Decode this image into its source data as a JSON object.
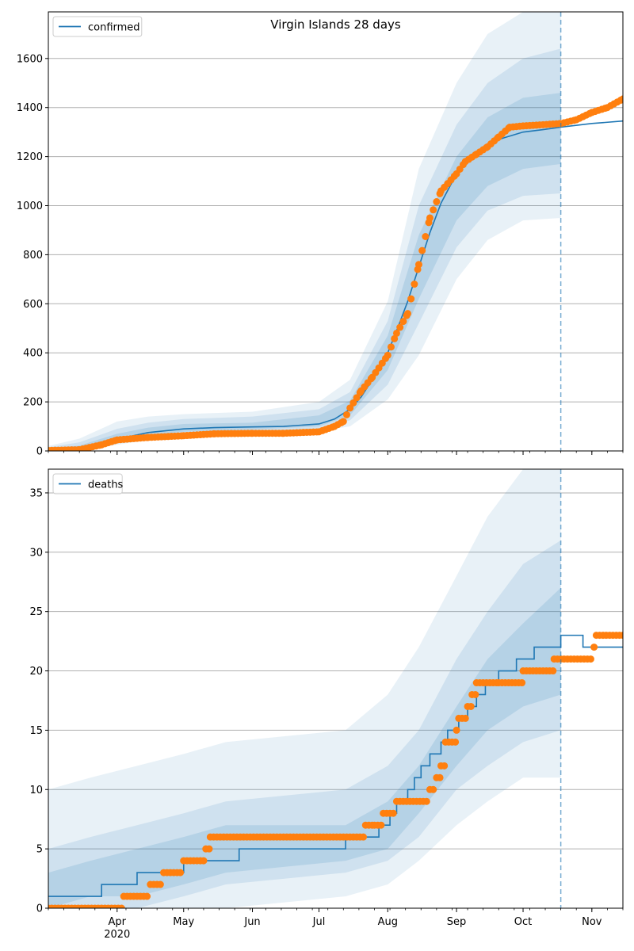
{
  "chart_data": [
    {
      "type": "line",
      "title": "Virgin Islands 28 days",
      "legend": {
        "entries": [
          "confirmed"
        ],
        "placement": "top-left"
      },
      "grid": "horizontal",
      "x_type": "date",
      "xlim": [
        "2020-03-01",
        "2020-11-15"
      ],
      "ylim": [
        0,
        1790
      ],
      "y_ticks": [
        0,
        200,
        400,
        600,
        800,
        1000,
        1200,
        1400,
        1600
      ],
      "x_tick_labels": [
        {
          "date": "2020-04-01",
          "label": "Apr",
          "sub": "2020"
        },
        {
          "date": "2020-05-01",
          "label": "May"
        },
        {
          "date": "2020-06-01",
          "label": "Jun"
        },
        {
          "date": "2020-07-01",
          "label": "Jul"
        },
        {
          "date": "2020-08-01",
          "label": "Aug"
        },
        {
          "date": "2020-09-01",
          "label": "Sep"
        },
        {
          "date": "2020-10-01",
          "label": "Oct"
        },
        {
          "date": "2020-11-01",
          "label": "Nov"
        }
      ],
      "forecast_start": "2020-10-18",
      "series": [
        {
          "name": "confirmed",
          "role": "model",
          "x": [
            "2020-03-01",
            "2020-03-15",
            "2020-03-25",
            "2020-04-01",
            "2020-04-15",
            "2020-05-01",
            "2020-05-15",
            "2020-06-01",
            "2020-06-15",
            "2020-07-01",
            "2020-07-08",
            "2020-07-15",
            "2020-07-20",
            "2020-07-25",
            "2020-08-01",
            "2020-08-05",
            "2020-08-10",
            "2020-08-15",
            "2020-08-20",
            "2020-08-25",
            "2020-09-01",
            "2020-09-10",
            "2020-09-20",
            "2020-10-01",
            "2020-10-10",
            "2020-10-18",
            "2020-11-01",
            "2020-11-15"
          ],
          "y": [
            5,
            12,
            30,
            48,
            75,
            90,
            95,
            98,
            100,
            110,
            130,
            170,
            220,
            290,
            400,
            490,
            610,
            750,
            890,
            1010,
            1130,
            1220,
            1270,
            1300,
            1310,
            1320,
            1335,
            1345
          ]
        },
        {
          "name": "",
          "role": "observed",
          "x": [
            "2020-03-01",
            "2020-03-15",
            "2020-03-25",
            "2020-04-01",
            "2020-04-15",
            "2020-05-01",
            "2020-05-15",
            "2020-06-01",
            "2020-06-15",
            "2020-07-01",
            "2020-07-08",
            "2020-07-12",
            "2020-07-15",
            "2020-07-20",
            "2020-07-25",
            "2020-08-01",
            "2020-08-05",
            "2020-08-10",
            "2020-08-15",
            "2020-08-20",
            "2020-08-25",
            "2020-09-01",
            "2020-09-05",
            "2020-09-10",
            "2020-09-15",
            "2020-09-20",
            "2020-09-25",
            "2020-10-01",
            "2020-10-10",
            "2020-10-18",
            "2020-10-25",
            "2020-11-01",
            "2020-11-08",
            "2020-11-15"
          ],
          "y": [
            2,
            5,
            25,
            45,
            55,
            62,
            70,
            72,
            72,
            78,
            100,
            120,
            175,
            245,
            300,
            390,
            480,
            560,
            760,
            950,
            1060,
            1130,
            1180,
            1210,
            1240,
            1280,
            1320,
            1325,
            1330,
            1335,
            1350,
            1380,
            1400,
            1435
          ]
        }
      ],
      "bands": [
        {
          "level": "outer",
          "x": [
            "2020-03-01",
            "2020-03-15",
            "2020-04-01",
            "2020-04-15",
            "2020-05-01",
            "2020-06-01",
            "2020-07-01",
            "2020-07-15",
            "2020-08-01",
            "2020-08-15",
            "2020-09-01",
            "2020-09-15",
            "2020-10-01",
            "2020-10-18"
          ],
          "lower": [
            0,
            0,
            25,
            45,
            60,
            70,
            80,
            100,
            210,
            390,
            700,
            860,
            940,
            950
          ],
          "upper": [
            20,
            50,
            120,
            140,
            150,
            160,
            200,
            290,
            610,
            1150,
            1500,
            1700,
            1790,
            1790
          ]
        },
        {
          "level": "middle",
          "x": [
            "2020-03-01",
            "2020-03-15",
            "2020-04-01",
            "2020-04-15",
            "2020-05-01",
            "2020-06-01",
            "2020-07-01",
            "2020-07-15",
            "2020-08-01",
            "2020-08-15",
            "2020-09-01",
            "2020-09-15",
            "2020-10-01",
            "2020-10-18"
          ],
          "lower": [
            0,
            2,
            30,
            55,
            70,
            80,
            90,
            125,
            270,
            520,
            830,
            980,
            1040,
            1050
          ],
          "upper": [
            15,
            35,
            90,
            115,
            130,
            140,
            170,
            240,
            530,
            1000,
            1330,
            1500,
            1600,
            1640
          ]
        },
        {
          "level": "inner",
          "x": [
            "2020-03-01",
            "2020-03-15",
            "2020-04-01",
            "2020-04-15",
            "2020-05-01",
            "2020-06-01",
            "2020-07-01",
            "2020-07-15",
            "2020-08-01",
            "2020-08-15",
            "2020-09-01",
            "2020-09-15",
            "2020-10-01",
            "2020-10-18"
          ],
          "lower": [
            0,
            5,
            38,
            64,
            78,
            88,
            100,
            145,
            330,
            620,
            940,
            1080,
            1150,
            1170
          ],
          "upper": [
            10,
            22,
            70,
            95,
            110,
            115,
            145,
            205,
            470,
            880,
            1200,
            1360,
            1440,
            1460
          ]
        }
      ]
    },
    {
      "type": "line",
      "legend": {
        "entries": [
          "deaths"
        ],
        "placement": "top-left"
      },
      "grid": "horizontal",
      "x_type": "date",
      "xlim": [
        "2020-03-01",
        "2020-11-15"
      ],
      "ylim": [
        0,
        37
      ],
      "y_ticks": [
        0,
        5,
        10,
        15,
        20,
        25,
        30,
        35
      ],
      "x_tick_labels": [
        {
          "date": "2020-04-01",
          "label": "Apr",
          "sub": "2020"
        },
        {
          "date": "2020-05-01",
          "label": "May"
        },
        {
          "date": "2020-06-01",
          "label": "Jun"
        },
        {
          "date": "2020-07-01",
          "label": "Jul"
        },
        {
          "date": "2020-08-01",
          "label": "Aug"
        },
        {
          "date": "2020-09-01",
          "label": "Sep"
        },
        {
          "date": "2020-10-01",
          "label": "Oct"
        },
        {
          "date": "2020-11-01",
          "label": "Nov"
        }
      ],
      "forecast_start": "2020-10-18",
      "series": [
        {
          "name": "deaths",
          "role": "model",
          "step": true,
          "x": [
            "2020-03-01",
            "2020-03-25",
            "2020-04-10",
            "2020-04-18",
            "2020-05-01",
            "2020-05-12",
            "2020-05-26",
            "2020-07-13",
            "2020-07-28",
            "2020-08-02",
            "2020-08-05",
            "2020-08-10",
            "2020-08-13",
            "2020-08-16",
            "2020-08-20",
            "2020-08-25",
            "2020-08-28",
            "2020-09-02",
            "2020-09-06",
            "2020-09-10",
            "2020-09-14",
            "2020-09-20",
            "2020-09-28",
            "2020-10-06",
            "2020-10-18",
            "2020-10-28",
            "2020-11-15"
          ],
          "y": [
            1,
            2,
            3,
            3,
            4,
            4,
            5,
            6,
            7,
            8,
            9,
            10,
            11,
            12,
            13,
            14,
            15,
            16,
            17,
            18,
            19,
            20,
            21,
            22,
            23,
            22,
            22
          ]
        },
        {
          "name": "",
          "role": "observed",
          "step": true,
          "x": [
            "2020-03-01",
            "2020-04-04",
            "2020-04-16",
            "2020-04-22",
            "2020-05-01",
            "2020-05-11",
            "2020-05-13",
            "2020-07-22",
            "2020-07-26",
            "2020-07-30",
            "2020-08-05",
            "2020-08-20",
            "2020-08-23",
            "2020-08-25",
            "2020-08-27",
            "2020-09-01",
            "2020-09-02",
            "2020-09-06",
            "2020-09-08",
            "2020-09-10",
            "2020-09-20",
            "2020-10-01",
            "2020-10-15",
            "2020-11-02",
            "2020-11-03",
            "2020-11-15"
          ],
          "y": [
            0,
            1,
            2,
            3,
            4,
            5,
            6,
            7,
            7,
            8,
            9,
            10,
            11,
            12,
            14,
            15,
            16,
            17,
            18,
            19,
            19,
            20,
            21,
            22,
            23,
            23
          ]
        }
      ],
      "bands": [
        {
          "level": "outer",
          "x": [
            "2020-03-01",
            "2020-03-20",
            "2020-04-10",
            "2020-05-01",
            "2020-05-20",
            "2020-07-13",
            "2020-08-01",
            "2020-08-15",
            "2020-09-01",
            "2020-09-15",
            "2020-10-01",
            "2020-10-18"
          ],
          "lower": [
            0,
            0,
            0,
            0,
            0,
            1,
            2,
            4,
            7,
            9,
            11,
            11
          ],
          "upper": [
            10,
            11,
            12,
            13,
            14,
            15,
            18,
            22,
            28,
            33,
            37,
            37
          ]
        },
        {
          "level": "middle",
          "x": [
            "2020-03-01",
            "2020-03-20",
            "2020-04-10",
            "2020-05-01",
            "2020-05-20",
            "2020-07-13",
            "2020-08-01",
            "2020-08-15",
            "2020-09-01",
            "2020-09-15",
            "2020-10-01",
            "2020-10-18"
          ],
          "lower": [
            0,
            0,
            0,
            1,
            2,
            3,
            4,
            6,
            10,
            12,
            14,
            15
          ],
          "upper": [
            5,
            6,
            7,
            8,
            9,
            10,
            12,
            15,
            21,
            25,
            29,
            31
          ]
        },
        {
          "level": "inner",
          "x": [
            "2020-03-01",
            "2020-03-20",
            "2020-04-10",
            "2020-05-01",
            "2020-05-20",
            "2020-07-13",
            "2020-08-01",
            "2020-08-15",
            "2020-09-01",
            "2020-09-15",
            "2020-10-01",
            "2020-10-18"
          ],
          "lower": [
            0,
            1,
            1,
            2,
            3,
            4,
            5,
            8,
            12,
            15,
            17,
            18
          ],
          "upper": [
            3,
            4,
            5,
            6,
            7,
            7,
            9,
            12,
            17,
            21,
            24,
            27
          ]
        }
      ]
    }
  ],
  "colors": {
    "model_line": "#1f77b4",
    "observed_dots": "#ff7f0e",
    "band_fill": "#1f77b4",
    "grid": "#b0b0b0",
    "forecast_line": "#1f77b4"
  }
}
